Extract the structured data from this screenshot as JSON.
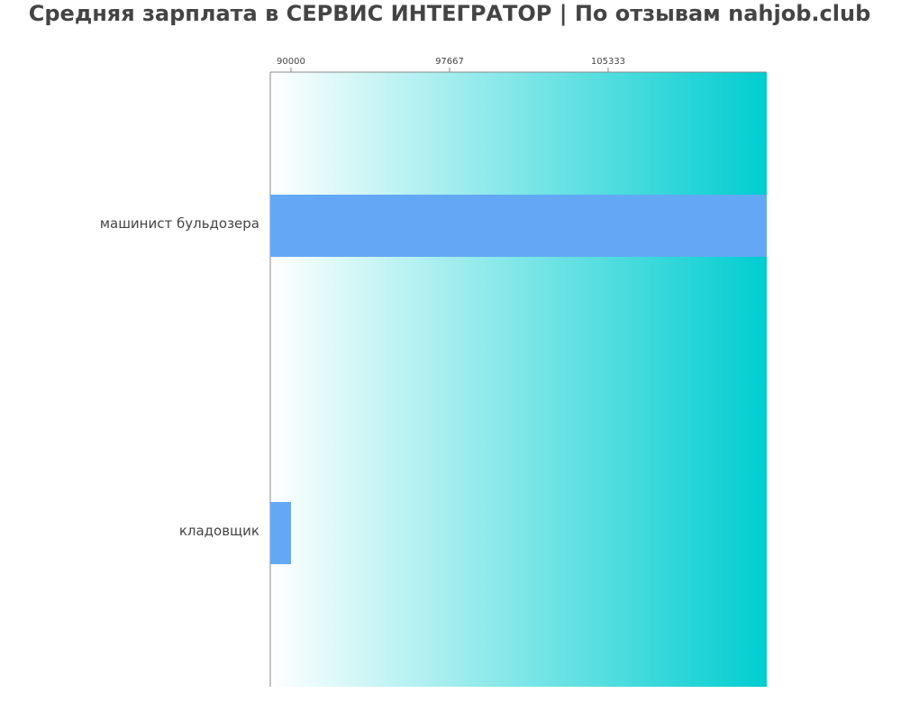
{
  "chart_data": {
    "type": "hbar",
    "title": "Средняя зарплата в СЕРВИС ИНТЕГРАТОР | По отзывам nahjob.club",
    "categories": [
      "машинист бульдозера",
      "кладовщик"
    ],
    "values": [
      113000,
      90000
    ],
    "color": "#63a8f4",
    "xlim": [
      89000,
      113000
    ],
    "xticks": [
      90000,
      97667,
      105333
    ]
  }
}
